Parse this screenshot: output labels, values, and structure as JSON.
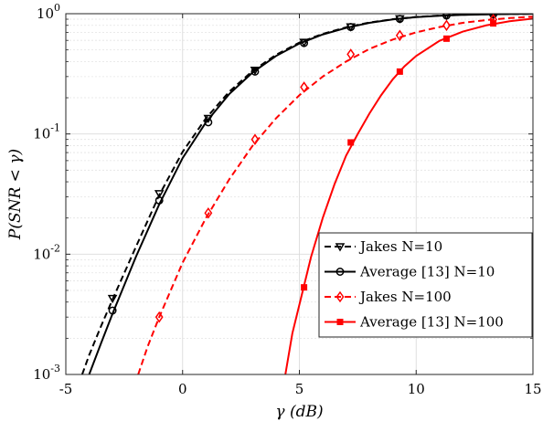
{
  "chart_data": {
    "type": "line",
    "title": "",
    "xlabel": "γ (dB)",
    "ylabel": "P(SNR < γ)",
    "xscale": "linear",
    "yscale": "log",
    "xlim": [
      -5,
      15
    ],
    "ylim": [
      0.001,
      1
    ],
    "grid": true,
    "legend_position": "bottom-right",
    "x_ticks": [
      -5,
      0,
      5,
      10,
      15
    ],
    "x_tick_labels": [
      "-5",
      "0",
      "5",
      "10",
      "15"
    ],
    "y_ticks": [
      0.001,
      0.01,
      0.1,
      1
    ],
    "y_tick_labels": [
      {
        "base": "10",
        "exp": "-3"
      },
      {
        "base": "10",
        "exp": "-2"
      },
      {
        "base": "10",
        "exp": "-1"
      },
      {
        "base": "10",
        "exp": "0"
      }
    ],
    "series": [
      {
        "name": "Jakes N=10",
        "color": "#000000",
        "dash": "dashed",
        "marker": "triangle-down",
        "curve": {
          "x": [
            -4.3,
            -4.0,
            -3.5,
            -3.0,
            -2.0,
            -1.0,
            0.0,
            1.0,
            2.0,
            3.0,
            4.0,
            5.0,
            6.0,
            7.0,
            8.0,
            9.0,
            10.0,
            11.0,
            12.0,
            13.0,
            14.0,
            15.0
          ],
          "y": [
            0.001,
            0.00145,
            0.0025,
            0.0042,
            0.0115,
            0.031,
            0.071,
            0.135,
            0.225,
            0.335,
            0.455,
            0.575,
            0.68,
            0.77,
            0.845,
            0.9,
            0.94,
            0.965,
            0.98,
            0.99,
            0.995,
            0.998
          ]
        },
        "markers": {
          "x": [
            -3.0,
            -1.0,
            1.1,
            3.1,
            5.2,
            7.2,
            9.3,
            11.3,
            13.3
          ],
          "y": [
            0.0043,
            0.032,
            0.135,
            0.34,
            0.58,
            0.78,
            0.91,
            0.97,
            0.99
          ]
        }
      },
      {
        "name": "Average [13] N=10",
        "color": "#000000",
        "dash": "solid",
        "marker": "circle",
        "curve": {
          "x": [
            -4.0,
            -3.5,
            -3.0,
            -2.0,
            -1.0,
            0.0,
            1.0,
            2.0,
            3.0,
            4.0,
            5.0,
            6.0,
            7.0,
            8.0,
            9.0,
            10.0,
            11.0,
            12.0,
            13.0,
            14.0,
            15.0
          ],
          "y": [
            0.001,
            0.0018,
            0.0032,
            0.0095,
            0.026,
            0.063,
            0.125,
            0.215,
            0.325,
            0.445,
            0.565,
            0.672,
            0.762,
            0.84,
            0.896,
            0.936,
            0.962,
            0.978,
            0.988,
            0.994,
            0.997
          ]
        },
        "markers": {
          "x": [
            -3.0,
            -1.0,
            1.1,
            3.1,
            5.2,
            7.2,
            9.3,
            11.3,
            13.3
          ],
          "y": [
            0.0034,
            0.028,
            0.125,
            0.33,
            0.57,
            0.775,
            0.905,
            0.965,
            0.99
          ]
        }
      },
      {
        "name": "Jakes N=100",
        "color": "#ff0000",
        "dash": "dashed",
        "marker": "diamond",
        "curve": {
          "x": [
            -1.9,
            -1.5,
            -1.0,
            0.0,
            1.0,
            2.0,
            3.0,
            4.0,
            5.0,
            6.0,
            7.0,
            8.0,
            9.0,
            10.0,
            11.0,
            12.0,
            13.0,
            14.0,
            15.0
          ],
          "y": [
            0.001,
            0.0017,
            0.003,
            0.0085,
            0.02,
            0.042,
            0.08,
            0.135,
            0.21,
            0.3,
            0.4,
            0.51,
            0.61,
            0.7,
            0.775,
            0.84,
            0.885,
            0.92,
            0.945
          ]
        },
        "markers": {
          "x": [
            -1.0,
            1.1,
            3.1,
            5.2,
            7.2,
            9.3,
            11.3,
            13.3
          ],
          "y": [
            0.003,
            0.022,
            0.09,
            0.245,
            0.46,
            0.66,
            0.8,
            0.895
          ]
        }
      },
      {
        "name": "Average [13] N=100",
        "color": "#ff0000",
        "dash": "solid",
        "marker": "square",
        "curve": {
          "x": [
            4.4,
            4.7,
            5.0,
            5.5,
            6.0,
            6.5,
            7.0,
            7.5,
            8.0,
            8.5,
            9.0,
            9.5,
            10.0,
            11.0,
            12.0,
            13.0,
            14.0,
            15.0
          ],
          "y": [
            0.001,
            0.0022,
            0.0038,
            0.0095,
            0.02,
            0.038,
            0.066,
            0.1,
            0.148,
            0.21,
            0.285,
            0.365,
            0.445,
            0.595,
            0.71,
            0.8,
            0.865,
            0.91
          ]
        },
        "markers": {
          "x": [
            5.2,
            7.2,
            9.3,
            11.3,
            13.3
          ],
          "y": [
            0.0053,
            0.085,
            0.33,
            0.62,
            0.83
          ]
        }
      }
    ]
  }
}
